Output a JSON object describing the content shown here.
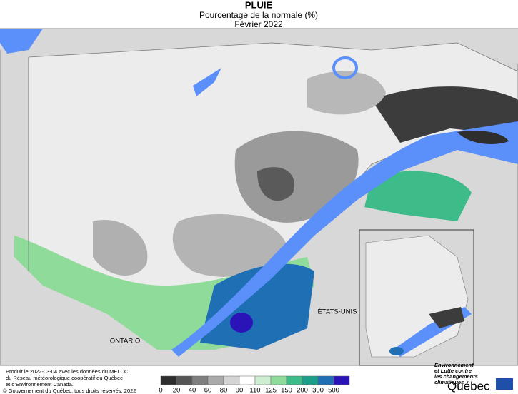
{
  "header": {
    "title": "PLUIE",
    "subtitle": "Pourcentage de la normale (%)",
    "date": "Février 2022"
  },
  "map": {
    "labels": {
      "ontario": "ONTARIO",
      "usa": "ÉTATS-UNIS"
    }
  },
  "legend": {
    "ticks": [
      0,
      20,
      40,
      60,
      80,
      90,
      110,
      125,
      150,
      200,
      300,
      500
    ],
    "colors": [
      "#2e2e2e",
      "#555555",
      "#7f7f7f",
      "#aaaaaa",
      "#d4d4d4",
      "#ffffff",
      "#cdeed0",
      "#8fdc9a",
      "#3dbb88",
      "#1aa08a",
      "#1f6fb5",
      "#2a14b8"
    ]
  },
  "footer": {
    "credits": [
      "Produit le 2022-03-04 avec les données du MELCC,",
      "du Réseau météorologique coopératif du Québec",
      "et d'Environnement Canada."
    ],
    "copyright": "© Gouvernement du Québec, tous droits réservés, 2022",
    "logo": {
      "ministry": [
        "Environnement",
        "et Lutte contre",
        "les changements",
        "climatiques"
      ],
      "name": "Québec"
    }
  }
}
